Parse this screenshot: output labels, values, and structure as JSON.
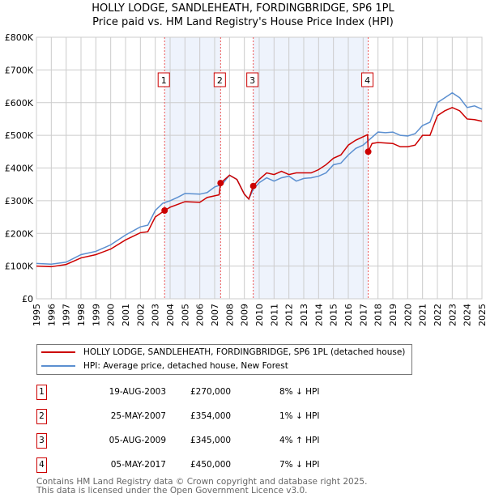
{
  "chart_data": {
    "type": "line",
    "title": "HOLLY LODGE, SANDLEHEATH, FORDINGBRIDGE, SP6 1PL",
    "subtitle": "Price paid vs. HM Land Registry's House Price Index (HPI)",
    "xlim": [
      1995,
      2025
    ],
    "ylim": [
      0,
      800000
    ],
    "y_ticks": [
      "£0",
      "£100K",
      "£200K",
      "£300K",
      "£400K",
      "£500K",
      "£600K",
      "£700K",
      "£800K"
    ],
    "x_ticks": [
      "1995",
      "1996",
      "1997",
      "1998",
      "1999",
      "2000",
      "2001",
      "2002",
      "2003",
      "2004",
      "2005",
      "2006",
      "2007",
      "2008",
      "2009",
      "2010",
      "2011",
      "2012",
      "2013",
      "2014",
      "2015",
      "2016",
      "2017",
      "2018",
      "2019",
      "2020",
      "2021",
      "2022",
      "2023",
      "2024",
      "2025"
    ],
    "grid": true,
    "series": [
      {
        "name": "HOLLY LODGE, SANDLEHEATH, FORDINGBRIDGE, SP6 1PL (detached house)",
        "color": "#cc0000",
        "x": [
          1995,
          1996,
          1997,
          1998,
          1999,
          2000,
          2001,
          2002,
          2002.5,
          2003,
          2003.63,
          2004,
          2005,
          2006,
          2006.5,
          2007.3,
          2007.4,
          2008,
          2008.5,
          2009,
          2009.3,
          2009.6,
          2010,
          2010.5,
          2011,
          2011.5,
          2012,
          2012.5,
          2013,
          2013.5,
          2014,
          2014.5,
          2015,
          2015.5,
          2016,
          2016.5,
          2017.3,
          2017.34,
          2017.6,
          2018,
          2019,
          2019.5,
          2020,
          2020.5,
          2021,
          2021.5,
          2022,
          2022.5,
          2023,
          2023.5,
          2024,
          2024.5,
          2025
        ],
        "y": [
          100,
          98,
          105,
          125,
          135,
          152,
          180,
          202,
          205,
          250,
          270,
          280,
          297,
          295,
          310,
          318,
          354,
          378,
          365,
          320,
          305,
          345,
          365,
          385,
          380,
          390,
          380,
          385,
          385,
          385,
          395,
          410,
          430,
          440,
          470,
          485,
          502,
          450,
          475,
          478,
          475,
          465,
          465,
          470,
          500,
          500,
          560,
          575,
          585,
          575,
          550,
          548,
          543
        ]
      },
      {
        "name": "HPI: Average price, detached house, New Forest",
        "color": "#5b8fd0",
        "x": [
          1995,
          1996,
          1997,
          1998,
          1999,
          2000,
          2001,
          2002,
          2002.5,
          2003,
          2003.5,
          2004,
          2004.5,
          2005,
          2006,
          2006.5,
          2007,
          2007.5,
          2008,
          2008.5,
          2009,
          2009.3,
          2009.6,
          2010,
          2010.5,
          2011,
          2011.5,
          2012,
          2012.5,
          2013,
          2013.5,
          2014,
          2014.5,
          2015,
          2015.5,
          2016,
          2016.5,
          2017,
          2017.5,
          2018,
          2018.5,
          2019,
          2019.5,
          2020,
          2020.5,
          2021,
          2021.5,
          2022,
          2022.5,
          2023,
          2023.5,
          2024,
          2024.5,
          2025
        ],
        "y": [
          108,
          106,
          112,
          135,
          145,
          165,
          195,
          220,
          225,
          270,
          292,
          300,
          310,
          322,
          320,
          325,
          342,
          350,
          378,
          365,
          320,
          305,
          335,
          355,
          370,
          360,
          370,
          375,
          360,
          368,
          370,
          375,
          385,
          410,
          415,
          440,
          460,
          470,
          490,
          510,
          508,
          510,
          500,
          498,
          505,
          530,
          540,
          600,
          615,
          630,
          615,
          585,
          590,
          580
        ]
      }
    ],
    "y_units": "thousands GBP",
    "sales": [
      {
        "label": "1",
        "x": 2003.63,
        "y": 270
      },
      {
        "label": "2",
        "x": 2007.4,
        "y": 354
      },
      {
        "label": "3",
        "x": 2009.6,
        "y": 345
      },
      {
        "label": "4",
        "x": 2017.34,
        "y": 450
      }
    ],
    "legend_placement": "below"
  },
  "transactions": [
    {
      "num": "1",
      "date": "19-AUG-2003",
      "price": "£270,000",
      "hpi": "8% ↓ HPI"
    },
    {
      "num": "2",
      "date": "25-MAY-2007",
      "price": "£354,000",
      "hpi": "1% ↓ HPI"
    },
    {
      "num": "3",
      "date": "05-AUG-2009",
      "price": "£345,000",
      "hpi": "4% ↑ HPI"
    },
    {
      "num": "4",
      "date": "05-MAY-2017",
      "price": "£450,000",
      "hpi": "7% ↓ HPI"
    }
  ],
  "footer": {
    "line1": "Contains HM Land Registry data © Crown copyright and database right 2025.",
    "line2": "This data is licensed under the Open Government Licence v3.0."
  }
}
